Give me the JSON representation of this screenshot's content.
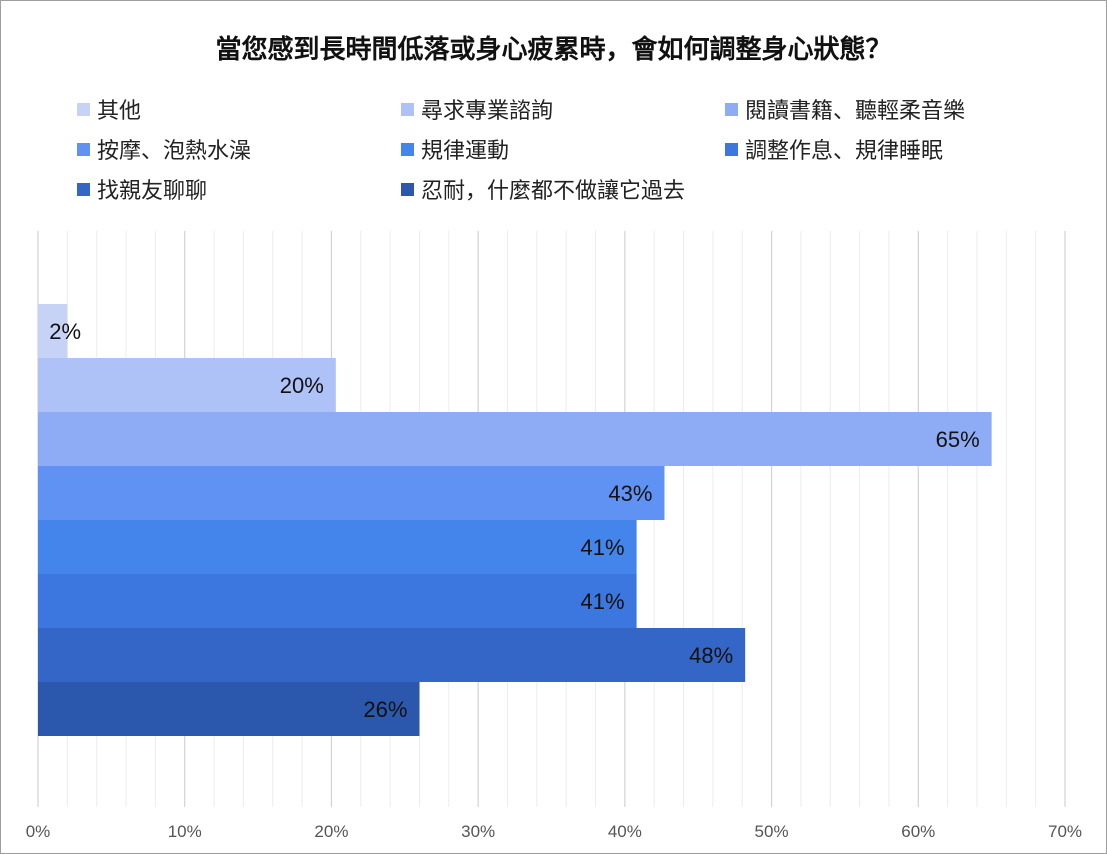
{
  "chart_data": {
    "type": "bar",
    "orientation": "horizontal",
    "title": "當您感到長時間低落或身心疲累時，會如何調整身心狀態？",
    "series": [
      {
        "name": "其他",
        "value": 2,
        "label": "2%",
        "color": "#c6d3f7"
      },
      {
        "name": "尋求專業諮詢",
        "value": 20.3,
        "label": "20%",
        "color": "#aec2f7"
      },
      {
        "name": "閱讀書籍、聽輕柔音樂",
        "value": 65,
        "label": "65%",
        "color": "#8eacf5"
      },
      {
        "name": "按摩、泡熱水澡",
        "value": 42.7,
        "label": "43%",
        "color": "#5f92f3"
      },
      {
        "name": "規律運動",
        "value": 40.8,
        "label": "41%",
        "color": "#4485ec"
      },
      {
        "name": "調整作息、規律睡眠",
        "value": 40.8,
        "label": "41%",
        "color": "#3b77df"
      },
      {
        "name": "找親友聊聊",
        "value": 48.2,
        "label": "48%",
        "color": "#3466c7"
      },
      {
        "name": "忍耐，什麼都不做讓它過去",
        "value": 26,
        "label": "26%",
        "color": "#2b57ac"
      }
    ],
    "xlim": [
      0,
      70
    ],
    "x_ticks": [
      "0%",
      "10%",
      "20%",
      "30%",
      "40%",
      "50%",
      "60%",
      "70%"
    ],
    "grid": true,
    "legend_position": "top"
  }
}
